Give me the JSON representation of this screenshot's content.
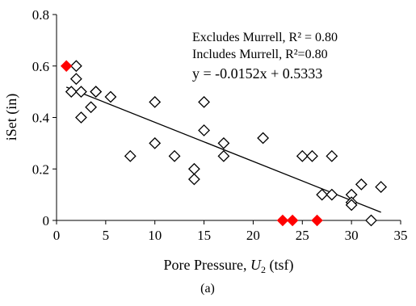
{
  "chart_data": {
    "type": "scatter",
    "xlabel_prefix": "Pore Pressure, ",
    "xlabel_var": "U",
    "xlabel_sub": "2",
    "xlabel_suffix": " (tsf)",
    "ylabel": "iSet (in)",
    "caption": "(a)",
    "xlim": [
      0,
      35
    ],
    "ylim": [
      0,
      0.8
    ],
    "xticks": [
      "0",
      "5",
      "10",
      "15",
      "20",
      "25",
      "30",
      "35"
    ],
    "yticks": [
      "0",
      "0.2",
      "0.4",
      "0.6",
      "0.8"
    ],
    "grid": false,
    "annotations": {
      "line1": "Excludes Murrell, R² = 0.80",
      "line2": "Includes Murrell, R²=0.80",
      "equation": "y = -0.0152x + 0.5333"
    },
    "trendline": {
      "slope": -0.0152,
      "intercept": 0.5333,
      "x_range": [
        1,
        33
      ]
    },
    "series": [
      {
        "marker": "diamond-open",
        "color": "#000000",
        "points": [
          [
            1.5,
            0.5
          ],
          [
            2,
            0.6
          ],
          [
            2,
            0.55
          ],
          [
            2.5,
            0.5
          ],
          [
            2.5,
            0.4
          ],
          [
            3.5,
            0.44
          ],
          [
            4,
            0.5
          ],
          [
            4,
            0.5
          ],
          [
            5.5,
            0.48
          ],
          [
            7.5,
            0.25
          ],
          [
            10,
            0.46
          ],
          [
            10,
            0.3
          ],
          [
            12,
            0.25
          ],
          [
            14,
            0.2
          ],
          [
            14,
            0.16
          ],
          [
            15,
            0.46
          ],
          [
            15,
            0.35
          ],
          [
            17,
            0.3
          ],
          [
            17,
            0.25
          ],
          [
            21,
            0.32
          ],
          [
            25,
            0.25
          ],
          [
            26,
            0.25
          ],
          [
            27,
            0.1
          ],
          [
            28,
            0.25
          ],
          [
            28,
            0.1
          ],
          [
            30,
            0.1
          ],
          [
            30,
            0.07
          ],
          [
            30,
            0.06
          ],
          [
            31,
            0.14
          ],
          [
            32,
            0.0
          ],
          [
            33,
            0.13
          ]
        ]
      },
      {
        "marker": "diamond-filled",
        "color": "#ff0000",
        "points": [
          [
            1,
            0.6
          ],
          [
            23,
            0.0
          ],
          [
            24,
            0.0
          ],
          [
            26.5,
            0.0
          ]
        ]
      }
    ]
  }
}
